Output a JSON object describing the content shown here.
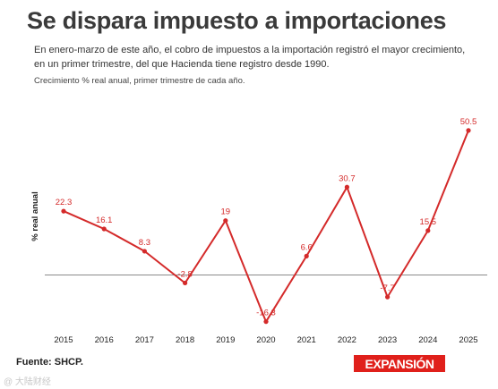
{
  "header": {
    "title": "Se dispara impuesto a importaciones",
    "subtitle": "En enero-marzo de este año, el cobro de impuestos a la importación registró el mayor crecimiento, en un primer trimestre, del que Hacienda tiene registro desde 1990.",
    "note": "Crecimiento % real anual, primer trimestre de cada año."
  },
  "chart_data": {
    "type": "line",
    "x": [
      "2015",
      "2016",
      "2017",
      "2018",
      "2019",
      "2020",
      "2021",
      "2022",
      "2023",
      "2024",
      "2025"
    ],
    "series": [
      {
        "values": [
          22.3,
          16.1,
          8.3,
          -2.8,
          19,
          -16.3,
          6.6,
          30.7,
          -7.7,
          15.5,
          50.5
        ]
      }
    ],
    "labels": [
      "22.3",
      "16.1",
      "8.3",
      "-2.8",
      "19",
      "-16.3",
      "6.6",
      "30.7",
      "-7.7",
      "15.5",
      "50.5"
    ],
    "ylabel": "% real anual",
    "xlabel": "",
    "ylim": [
      -20,
      55
    ],
    "line_color": "#d42a2a",
    "zero_line": true,
    "grid": false
  },
  "footer": {
    "source": "Fuente: SHCP.",
    "logo": "EXPANSIÓN",
    "watermark": "@ 大陆财经"
  }
}
